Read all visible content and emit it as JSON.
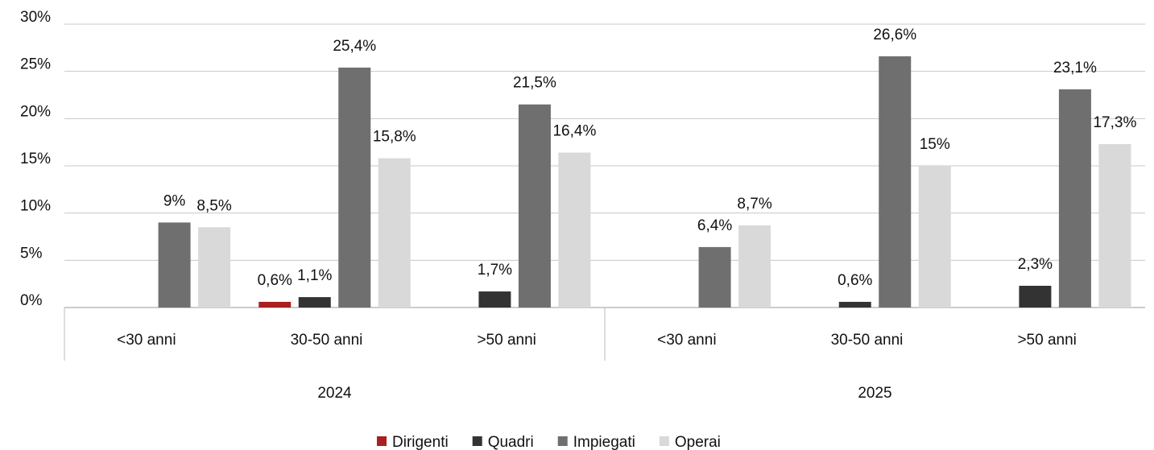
{
  "chart_data": {
    "type": "bar",
    "categories": [
      "<30 anni",
      "30-50 anni",
      ">50 anni",
      "<30 anni",
      "30-50 anni",
      ">50 anni"
    ],
    "group_labels": [
      "2024",
      "2025"
    ],
    "series": [
      {
        "name": "Dirigenti",
        "color": "#a8201f",
        "values": [
          null,
          0.6,
          null,
          null,
          null,
          null
        ],
        "value_labels": [
          null,
          "0,6%",
          null,
          null,
          null,
          null
        ]
      },
      {
        "name": "Quadri",
        "color": "#333333",
        "values": [
          null,
          1.1,
          1.7,
          null,
          0.6,
          2.3
        ],
        "value_labels": [
          null,
          "1,1%",
          "1,7%",
          null,
          "0,6%",
          "2,3%"
        ]
      },
      {
        "name": "Impiegati",
        "color": "#6f6f6f",
        "values": [
          9,
          25.4,
          21.5,
          6.4,
          26.6,
          23.1
        ],
        "value_labels": [
          "9%",
          "25,4%",
          "21,5%",
          "6,4%",
          "26,6%",
          "23,1%"
        ]
      },
      {
        "name": "Operai",
        "color": "#d9d9d9",
        "values": [
          8.5,
          15.8,
          16.4,
          8.7,
          15,
          17.3
        ],
        "value_labels": [
          "8,5%",
          "15,8%",
          "16,4%",
          "8,7%",
          "15%",
          "17,3%"
        ]
      }
    ],
    "ylim": [
      0,
      30
    ],
    "yticks": [
      {
        "value": 0,
        "label": "0%"
      },
      {
        "value": 5,
        "label": "5%"
      },
      {
        "value": 10,
        "label": "10%"
      },
      {
        "value": 15,
        "label": "15%"
      },
      {
        "value": 20,
        "label": "20%"
      },
      {
        "value": 25,
        "label": "25%"
      },
      {
        "value": 30,
        "label": "30%"
      }
    ],
    "grid": true,
    "legend": "bottom"
  }
}
